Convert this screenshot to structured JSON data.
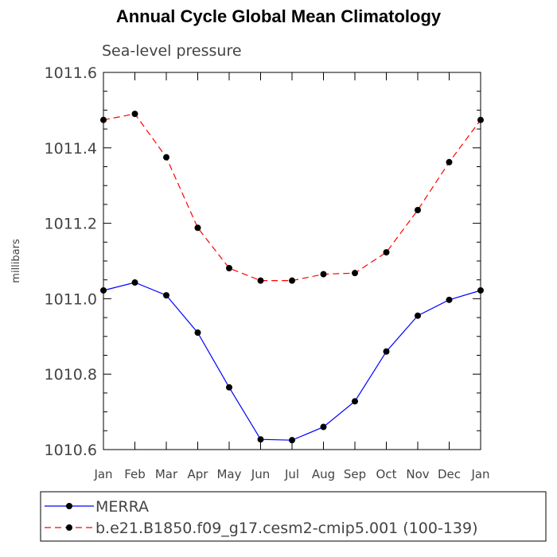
{
  "chart_data": {
    "type": "line",
    "title": "Annual Cycle Global Mean Climatology",
    "subtitle": "Sea-level pressure",
    "ylabel": "millibars",
    "xlabel": "",
    "categories": [
      "Jan",
      "Feb",
      "Mar",
      "Apr",
      "May",
      "Jun",
      "Jul",
      "Aug",
      "Sep",
      "Oct",
      "Nov",
      "Dec",
      "Jan"
    ],
    "ylim": [
      1010.6,
      1011.6
    ],
    "yticks": [
      1010.6,
      1010.8,
      1011.0,
      1011.2,
      1011.4,
      1011.6
    ],
    "ytick_labels": [
      "1010.6",
      "1010.8",
      "1011.0",
      "1011.2",
      "1011.4",
      "1011.6"
    ],
    "grid": false,
    "legend_position": "bottom",
    "series": [
      {
        "name": "MERRA",
        "color": "#0000ff",
        "dash": "solid",
        "values": [
          1011.022,
          1011.043,
          1011.009,
          1010.91,
          1010.765,
          1010.627,
          1010.625,
          1010.66,
          1010.728,
          1010.86,
          1010.955,
          1010.997,
          1011.022
        ]
      },
      {
        "name": "b.e21.B1850.f09_g17.cesm2-cmip5.001 (100-139)",
        "color": "#ff0000",
        "dash": "dashed",
        "values": [
          1011.474,
          1011.49,
          1011.375,
          1011.188,
          1011.081,
          1011.048,
          1011.048,
          1011.065,
          1011.068,
          1011.123,
          1011.235,
          1011.362,
          1011.474
        ]
      }
    ]
  }
}
